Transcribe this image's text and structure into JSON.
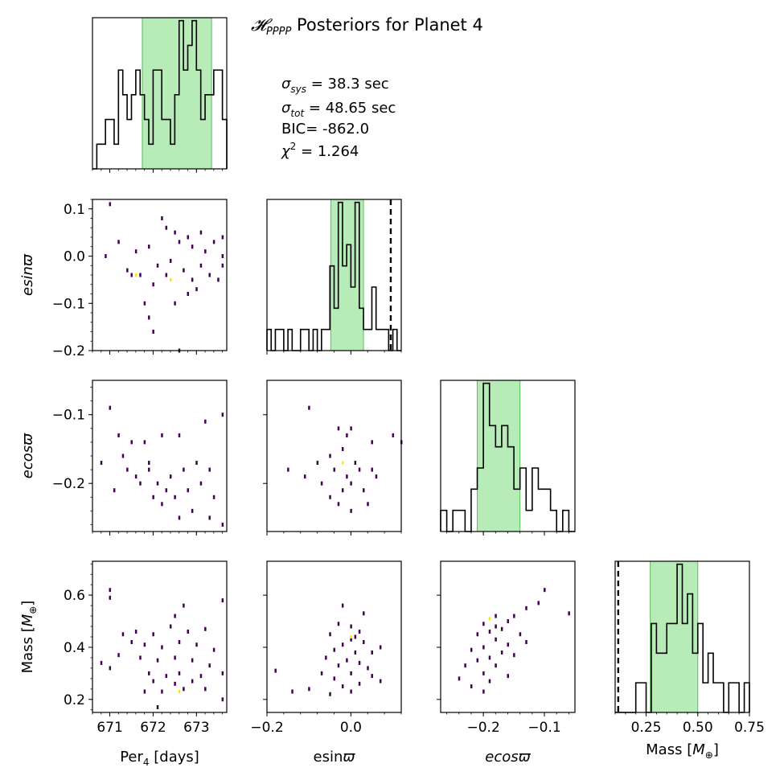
{
  "figure": {
    "title": "𝓗PPPP Posteriors for Planet 4",
    "title_parts": {
      "script": "𝓗",
      "sub": "PPPP",
      "rest": " Posteriors for Planet 4"
    },
    "stats": {
      "sigma_sys": {
        "sym": "σ",
        "sub": "sys",
        "text": " = 38.3 sec"
      },
      "sigma_tot": {
        "sym": "σ",
        "sub": "tot",
        "text": " = 48.65 sec"
      },
      "bic": "BIC= -862.0",
      "chi2": {
        "sym": "χ",
        "sup": "2",
        "text": " = 1.264"
      }
    }
  },
  "colors": {
    "band": "#90e090",
    "band_edge": "#55c055",
    "hist_line": "#000000",
    "dense": "#ffe600",
    "sparse": "#440154"
  },
  "chart_data": {
    "type": "corner",
    "parameters": [
      {
        "key": "per",
        "label": "Per₄ [days]",
        "label_main": "Per",
        "label_sub": "4",
        "label_tail": " [days]",
        "range": [
          670.6,
          673.7
        ],
        "ticks": [
          671,
          672,
          673
        ],
        "tick_labels": [
          "671",
          "672",
          "673"
        ],
        "band": [
          671.75,
          673.35
        ],
        "ref": null
      },
      {
        "key": "esin",
        "label": "esinϖ",
        "range": [
          -0.2,
          0.12
        ],
        "ticks": [
          -0.2,
          -0.1,
          0.0,
          0.1
        ],
        "tick_labels": [
          "−0.2",
          "−0.1",
          "0.0",
          "0.1"
        ],
        "x_ticks": [
          -0.2,
          0.0
        ],
        "x_tick_labels": [
          "−0.2",
          "0.0"
        ],
        "band": [
          -0.048,
          0.03
        ],
        "ref": 0.095
      },
      {
        "key": "ecos",
        "label": "ecosϖ",
        "range": [
          -0.27,
          -0.05
        ],
        "ticks": [
          -0.2,
          -0.1
        ],
        "tick_labels": [
          "−0.2",
          "−0.1"
        ],
        "band": [
          -0.21,
          -0.14
        ],
        "ref": null
      },
      {
        "key": "mass",
        "label": "Mass [M⊕]",
        "label_main": "Mass [",
        "label_m": "M",
        "label_sub": "⊕",
        "label_tail": "]",
        "range": [
          0.15,
          0.73
        ],
        "ticks": [
          0.2,
          0.4,
          0.6
        ],
        "tick_labels": [
          "0.2",
          "0.4",
          "0.6"
        ],
        "x_ticks": [
          0.25,
          0.5,
          0.75
        ],
        "x_tick_labels": [
          "0.25",
          "0.50",
          "0.75"
        ],
        "range_x": [
          0.1,
          0.75
        ],
        "band": [
          0.27,
          0.5
        ],
        "ref": 0.115
      }
    ],
    "histograms": {
      "per": {
        "bins": [
          670.6,
          670.7,
          670.8,
          670.9,
          671.0,
          671.1,
          671.2,
          671.3,
          671.4,
          671.5,
          671.6,
          671.7,
          671.8,
          671.9,
          672.0,
          672.1,
          672.2,
          672.3,
          672.4,
          672.5,
          672.6,
          672.7,
          672.8,
          672.9,
          673.0,
          673.1,
          673.2,
          673.3,
          673.4,
          673.5,
          673.6,
          673.7
        ],
        "counts": [
          0,
          1,
          1,
          2,
          2,
          1,
          4,
          3,
          2,
          3,
          4,
          3,
          2,
          1,
          4,
          4,
          2,
          2,
          1,
          3,
          6,
          4,
          5,
          6,
          4,
          2,
          3,
          3,
          4,
          4,
          2
        ]
      },
      "esin": {
        "bins": [
          -0.2,
          -0.19,
          -0.18,
          -0.17,
          -0.16,
          -0.15,
          -0.14,
          -0.13,
          -0.12,
          -0.11,
          -0.1,
          -0.09,
          -0.08,
          -0.07,
          -0.06,
          -0.05,
          -0.04,
          -0.03,
          -0.02,
          -0.01,
          0.0,
          0.01,
          0.02,
          0.03,
          0.04,
          0.05,
          0.06,
          0.07,
          0.08,
          0.09,
          0.1,
          0.11,
          0.12
        ],
        "counts": [
          1,
          0,
          1,
          1,
          0,
          1,
          0,
          0,
          1,
          1,
          0,
          1,
          0,
          1,
          1,
          4,
          2,
          7,
          4,
          5,
          3,
          7,
          2,
          1,
          1,
          3,
          1,
          1,
          1,
          0,
          1,
          0
        ]
      },
      "ecos": {
        "bins": [
          -0.27,
          -0.26,
          -0.25,
          -0.24,
          -0.23,
          -0.22,
          -0.21,
          -0.2,
          -0.19,
          -0.18,
          -0.17,
          -0.16,
          -0.15,
          -0.14,
          -0.13,
          -0.12,
          -0.11,
          -0.1,
          -0.09,
          -0.08,
          -0.07,
          -0.06,
          -0.05
        ],
        "counts": [
          1,
          0,
          1,
          1,
          0,
          2,
          3,
          7,
          5,
          4,
          5,
          4,
          2,
          3,
          1,
          3,
          2,
          2,
          1,
          0,
          1,
          0
        ]
      },
      "mass": {
        "bins": [
          0.1,
          0.125,
          0.15,
          0.175,
          0.2,
          0.225,
          0.25,
          0.275,
          0.3,
          0.325,
          0.35,
          0.375,
          0.4,
          0.425,
          0.45,
          0.475,
          0.5,
          0.525,
          0.55,
          0.575,
          0.6,
          0.625,
          0.65,
          0.675,
          0.7,
          0.725,
          0.75
        ],
        "counts": [
          0,
          0,
          0,
          0,
          1,
          1,
          0,
          3,
          2,
          2,
          3,
          3,
          5,
          3,
          4,
          2,
          3,
          1,
          2,
          1,
          1,
          0,
          1,
          1,
          0,
          1
        ]
      }
    },
    "scatter": {
      "per_esin": [
        [
          671.0,
          0.11
        ],
        [
          672.2,
          0.08
        ],
        [
          672.3,
          0.06
        ],
        [
          672.5,
          0.05
        ],
        [
          672.8,
          0.04
        ],
        [
          673.1,
          0.05
        ],
        [
          673.6,
          0.04
        ],
        [
          670.9,
          0.0
        ],
        [
          671.2,
          0.03
        ],
        [
          671.6,
          0.01
        ],
        [
          671.9,
          0.02
        ],
        [
          672.1,
          -0.02
        ],
        [
          672.4,
          -0.01
        ],
        [
          672.6,
          0.03
        ],
        [
          672.9,
          0.02
        ],
        [
          673.2,
          0.01
        ],
        [
          673.4,
          0.03
        ],
        [
          673.6,
          0.0
        ],
        [
          671.4,
          -0.03
        ],
        [
          671.7,
          -0.04
        ],
        [
          672.0,
          -0.06
        ],
        [
          672.3,
          -0.04
        ],
        [
          672.7,
          -0.03
        ],
        [
          672.9,
          -0.05
        ],
        [
          673.1,
          -0.02
        ],
        [
          673.3,
          -0.04
        ],
        [
          673.5,
          -0.05
        ],
        [
          671.8,
          -0.1
        ],
        [
          671.9,
          -0.13
        ],
        [
          672.0,
          -0.16
        ],
        [
          672.5,
          -0.1
        ],
        [
          673.0,
          -0.07
        ],
        [
          672.8,
          -0.08
        ],
        [
          673.6,
          -0.02
        ],
        [
          671.5,
          -0.04
        ],
        [
          672.6,
          -0.2
        ]
      ],
      "ecos_dense": {
        "per_esin": [
          671.6,
          -0.04
        ]
      },
      "per_ecos": [
        [
          671.0,
          -0.09
        ],
        [
          671.2,
          -0.13
        ],
        [
          671.3,
          -0.16
        ],
        [
          671.5,
          -0.14
        ],
        [
          671.8,
          -0.14
        ],
        [
          672.2,
          -0.13
        ],
        [
          672.6,
          -0.13
        ],
        [
          673.2,
          -0.11
        ],
        [
          673.6,
          -0.1
        ],
        [
          670.8,
          -0.17
        ],
        [
          671.4,
          -0.18
        ],
        [
          671.6,
          -0.19
        ],
        [
          671.9,
          -0.17
        ],
        [
          672.1,
          -0.2
        ],
        [
          672.4,
          -0.19
        ],
        [
          672.7,
          -0.18
        ],
        [
          673.0,
          -0.17
        ],
        [
          673.3,
          -0.18
        ],
        [
          671.1,
          -0.21
        ],
        [
          671.7,
          -0.2
        ],
        [
          672.0,
          -0.22
        ],
        [
          672.3,
          -0.21
        ],
        [
          672.5,
          -0.22
        ],
        [
          672.8,
          -0.21
        ],
        [
          673.1,
          -0.2
        ],
        [
          673.4,
          -0.22
        ],
        [
          672.2,
          -0.23
        ],
        [
          672.9,
          -0.24
        ],
        [
          673.3,
          -0.25
        ],
        [
          673.6,
          -0.26
        ],
        [
          672.6,
          -0.25
        ],
        [
          671.9,
          -0.18
        ]
      ],
      "esin_ecos": [
        [
          -0.1,
          -0.09
        ],
        [
          -0.03,
          -0.12
        ],
        [
          0.0,
          -0.12
        ],
        [
          0.05,
          -0.14
        ],
        [
          -0.08,
          -0.17
        ],
        [
          -0.05,
          -0.16
        ],
        [
          -0.02,
          -0.15
        ],
        [
          0.01,
          -0.17
        ],
        [
          0.05,
          -0.18
        ],
        [
          0.1,
          -0.13
        ],
        [
          -0.15,
          -0.18
        ],
        [
          -0.11,
          -0.19
        ],
        [
          -0.04,
          -0.18
        ],
        [
          -0.01,
          -0.19
        ],
        [
          0.02,
          -0.18
        ],
        [
          0.06,
          -0.19
        ],
        [
          -0.07,
          -0.2
        ],
        [
          -0.02,
          -0.21
        ],
        [
          0.0,
          -0.2
        ],
        [
          0.03,
          -0.21
        ],
        [
          -0.03,
          -0.23
        ],
        [
          0.0,
          -0.24
        ],
        [
          0.04,
          -0.23
        ],
        [
          -0.05,
          -0.22
        ],
        [
          0.12,
          -0.14
        ],
        [
          -0.01,
          -0.13
        ]
      ],
      "per_mass": [
        [
          671.0,
          0.62
        ],
        [
          671.0,
          0.59
        ],
        [
          672.5,
          0.52
        ],
        [
          672.7,
          0.56
        ],
        [
          673.6,
          0.58
        ],
        [
          671.3,
          0.45
        ],
        [
          671.6,
          0.46
        ],
        [
          672.0,
          0.45
        ],
        [
          672.4,
          0.48
        ],
        [
          672.8,
          0.46
        ],
        [
          673.2,
          0.47
        ],
        [
          671.5,
          0.42
        ],
        [
          671.8,
          0.41
        ],
        [
          672.2,
          0.4
        ],
        [
          672.6,
          0.42
        ],
        [
          673.0,
          0.41
        ],
        [
          673.4,
          0.39
        ],
        [
          671.2,
          0.37
        ],
        [
          671.7,
          0.36
        ],
        [
          672.1,
          0.35
        ],
        [
          672.5,
          0.36
        ],
        [
          672.9,
          0.35
        ],
        [
          673.3,
          0.33
        ],
        [
          670.8,
          0.34
        ],
        [
          671.0,
          0.32
        ],
        [
          671.9,
          0.3
        ],
        [
          672.3,
          0.29
        ],
        [
          672.6,
          0.3
        ],
        [
          673.1,
          0.29
        ],
        [
          673.6,
          0.3
        ],
        [
          672.0,
          0.27
        ],
        [
          672.5,
          0.26
        ],
        [
          672.9,
          0.27
        ],
        [
          671.8,
          0.23
        ],
        [
          672.2,
          0.23
        ],
        [
          672.7,
          0.24
        ],
        [
          673.2,
          0.24
        ],
        [
          673.6,
          0.2
        ],
        [
          672.1,
          0.17
        ]
      ],
      "esin_mass": [
        [
          0.0,
          0.48
        ],
        [
          0.03,
          0.53
        ],
        [
          -0.02,
          0.56
        ],
        [
          -0.03,
          0.49
        ],
        [
          0.02,
          0.46
        ],
        [
          -0.05,
          0.45
        ],
        [
          0.0,
          0.43
        ],
        [
          0.03,
          0.42
        ],
        [
          0.07,
          0.4
        ],
        [
          -0.02,
          0.41
        ],
        [
          -0.04,
          0.39
        ],
        [
          0.01,
          0.38
        ],
        [
          0.05,
          0.38
        ],
        [
          -0.06,
          0.36
        ],
        [
          -0.01,
          0.35
        ],
        [
          0.02,
          0.34
        ],
        [
          -0.03,
          0.33
        ],
        [
          0.04,
          0.32
        ],
        [
          -0.07,
          0.3
        ],
        [
          0.0,
          0.3
        ],
        [
          0.05,
          0.29
        ],
        [
          -0.04,
          0.28
        ],
        [
          0.02,
          0.26
        ],
        [
          -0.02,
          0.25
        ],
        [
          0.07,
          0.27
        ],
        [
          -0.1,
          0.24
        ],
        [
          -0.14,
          0.23
        ],
        [
          -0.05,
          0.22
        ],
        [
          0.0,
          0.23
        ],
        [
          -0.18,
          0.31
        ],
        [
          0.01,
          0.44
        ]
      ],
      "ecos_mass": [
        [
          -0.1,
          0.62
        ],
        [
          -0.11,
          0.57
        ],
        [
          -0.13,
          0.55
        ],
        [
          -0.15,
          0.52
        ],
        [
          -0.18,
          0.52
        ],
        [
          -0.16,
          0.5
        ],
        [
          -0.2,
          0.49
        ],
        [
          -0.17,
          0.47
        ],
        [
          -0.19,
          0.46
        ],
        [
          -0.14,
          0.45
        ],
        [
          -0.13,
          0.42
        ],
        [
          -0.21,
          0.45
        ],
        [
          -0.18,
          0.43
        ],
        [
          -0.16,
          0.41
        ],
        [
          -0.2,
          0.4
        ],
        [
          -0.22,
          0.39
        ],
        [
          -0.17,
          0.38
        ],
        [
          -0.19,
          0.36
        ],
        [
          -0.15,
          0.37
        ],
        [
          -0.21,
          0.35
        ],
        [
          -0.23,
          0.33
        ],
        [
          -0.18,
          0.33
        ],
        [
          -0.2,
          0.3
        ],
        [
          -0.24,
          0.28
        ],
        [
          -0.16,
          0.29
        ],
        [
          -0.19,
          0.27
        ],
        [
          -0.22,
          0.25
        ],
        [
          -0.2,
          0.23
        ],
        [
          -0.06,
          0.53
        ],
        [
          -0.18,
          0.48
        ]
      ]
    },
    "dense_points": {
      "per_esin": [
        [
          671.6,
          -0.04
        ],
        [
          672.4,
          -0.05
        ]
      ],
      "per_mass": [
        [
          672.6,
          0.23
        ]
      ],
      "esin_ecos": [
        [
          -0.02,
          -0.17
        ]
      ],
      "esin_mass": [
        [
          0.0,
          0.44
        ]
      ],
      "ecos_mass": [
        [
          -0.19,
          0.51
        ]
      ]
    }
  }
}
